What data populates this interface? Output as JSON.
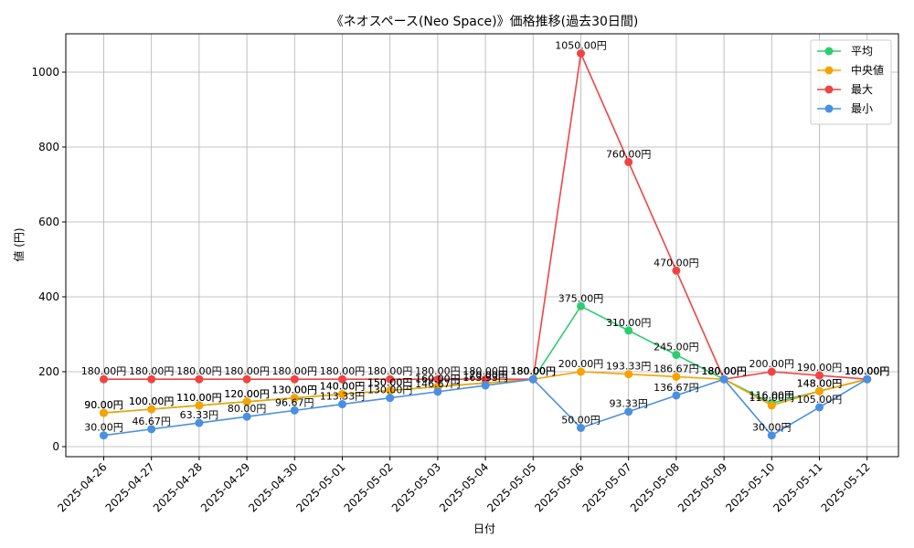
{
  "chart_data": {
    "type": "line",
    "title": "《ネオスペース(Neo Space)》価格推移(過去30日間)",
    "xlabel": "日付",
    "ylabel": "値 (円)",
    "ylim": [
      0,
      1100
    ],
    "yticks": [
      0,
      200,
      400,
      600,
      800,
      1000
    ],
    "grid": true,
    "legend_position": "top-right",
    "value_suffix": "円",
    "categories": [
      "2025-04-26",
      "2025-04-27",
      "2025-04-28",
      "2025-04-29",
      "2025-04-30",
      "2025-05-01",
      "2025-05-02",
      "2025-05-03",
      "2025-05-04",
      "2025-05-05",
      "2025-05-06",
      "2025-05-07",
      "2025-05-08",
      "2025-05-09",
      "2025-05-10",
      "2025-05-11",
      "2025-05-12"
    ],
    "series": [
      {
        "name": "平均",
        "color": "#2ecc71",
        "values": [
          90,
          100,
          110,
          120,
          130,
          140,
          150,
          160,
          170,
          180,
          375,
          310,
          245,
          180,
          116,
          148,
          180
        ]
      },
      {
        "name": "中央値",
        "color": "#f5a300",
        "values": [
          90,
          100,
          110,
          120,
          130,
          140,
          150,
          160,
          170,
          180,
          200,
          193.33,
          186.67,
          180,
          110,
          148,
          180
        ]
      },
      {
        "name": "最大",
        "color": "#ef4444",
        "values": [
          180,
          180,
          180,
          180,
          180,
          180,
          180,
          180,
          180,
          180,
          1050,
          760,
          470,
          180,
          200,
          190,
          180
        ]
      },
      {
        "name": "最小",
        "color": "#4a90e2",
        "values": [
          30,
          46.67,
          63.33,
          80,
          96.67,
          113.33,
          130,
          146.67,
          163.33,
          180,
          50,
          93.33,
          136.67,
          180,
          30,
          105,
          180
        ]
      }
    ]
  }
}
